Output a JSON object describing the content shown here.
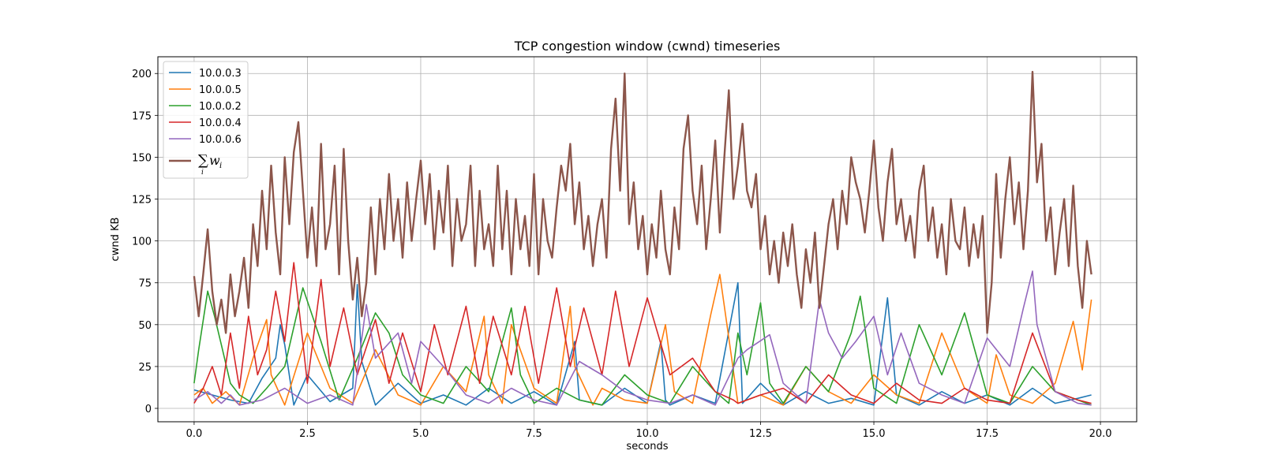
{
  "chart_data": {
    "type": "line",
    "title": "TCP congestion window (cwnd) timeseries",
    "xlabel": "seconds",
    "ylabel": "cwnd KB",
    "xlim": [
      -0.8,
      20.8
    ],
    "ylim": [
      -8,
      210
    ],
    "xticks": [
      "0.0",
      "2.5",
      "5.0",
      "7.5",
      "10.0",
      "12.5",
      "15.0",
      "17.5",
      "20.0"
    ],
    "xtick_values": [
      0,
      2.5,
      5,
      7.5,
      10,
      12.5,
      15,
      17.5,
      20
    ],
    "yticks": [
      "0",
      "25",
      "50",
      "75",
      "100",
      "125",
      "150",
      "175",
      "200"
    ],
    "ytick_values": [
      0,
      25,
      50,
      75,
      100,
      125,
      150,
      175,
      200
    ],
    "grid": true,
    "legend_position": "top-left",
    "series": [
      {
        "name": "10.0.0.3",
        "color": "#1f77b4",
        "x": [
          0.0,
          0.4,
          0.8,
          1.2,
          1.5,
          1.8,
          1.9,
          2.0,
          2.2,
          2.5,
          3.0,
          3.5,
          3.6,
          3.7,
          4.0,
          4.5,
          5.0,
          5.5,
          6.0,
          6.5,
          7.0,
          7.5,
          8.0,
          8.4,
          8.5,
          9.0,
          9.5,
          10.0,
          10.3,
          10.4,
          10.5,
          11.0,
          11.5,
          12.0,
          12.05,
          12.1,
          12.5,
          13.0,
          13.5,
          14.0,
          14.5,
          15.0,
          15.3,
          15.5,
          16.0,
          16.5,
          17.0,
          17.5,
          18.0,
          18.5,
          19.0,
          19.5,
          19.8
        ],
        "y": [
          11,
          8,
          5,
          3,
          18,
          30,
          50,
          38,
          2,
          20,
          4,
          12,
          74,
          28,
          2,
          15,
          3,
          8,
          2,
          12,
          3,
          10,
          2,
          40,
          5,
          2,
          12,
          3,
          40,
          5,
          2,
          8,
          3,
          75,
          40,
          3,
          15,
          2,
          10,
          3,
          6,
          2,
          66,
          8,
          2,
          10,
          3,
          8,
          2,
          12,
          3,
          6,
          8
        ]
      },
      {
        "name": "10.0.0.5",
        "color": "#ff7f0e",
        "x": [
          0.0,
          0.2,
          0.4,
          0.7,
          1.0,
          1.3,
          1.6,
          1.7,
          2.0,
          2.5,
          3.0,
          3.5,
          4.0,
          4.5,
          5.0,
          5.5,
          6.0,
          6.4,
          6.5,
          6.8,
          7.0,
          7.5,
          8.0,
          8.3,
          8.4,
          8.8,
          9.0,
          9.5,
          10.0,
          10.4,
          10.6,
          11.0,
          11.4,
          11.6,
          11.8,
          12.0,
          12.5,
          13.0,
          13.5,
          14.0,
          14.5,
          15.0,
          15.5,
          16.0,
          16.5,
          17.0,
          17.5,
          17.7,
          18.0,
          18.5,
          19.0,
          19.4,
          19.6,
          19.8
        ],
        "y": [
          8,
          12,
          3,
          10,
          2,
          30,
          53,
          20,
          2,
          45,
          12,
          3,
          35,
          8,
          2,
          25,
          10,
          55,
          20,
          3,
          50,
          12,
          3,
          61,
          25,
          2,
          12,
          5,
          3,
          50,
          10,
          3,
          56,
          80,
          42,
          3,
          8,
          2,
          25,
          10,
          3,
          20,
          8,
          3,
          45,
          12,
          3,
          32,
          8,
          3,
          15,
          52,
          23,
          65
        ]
      },
      {
        "name": "10.0.0.2",
        "color": "#2ca02c",
        "x": [
          0.0,
          0.1,
          0.3,
          0.45,
          0.6,
          0.8,
          1.0,
          1.3,
          1.6,
          2.0,
          2.4,
          2.8,
          3.2,
          3.6,
          4.0,
          4.3,
          4.6,
          5.0,
          5.5,
          6.0,
          6.5,
          7.0,
          7.2,
          7.5,
          8.0,
          8.5,
          9.0,
          9.5,
          10.0,
          10.5,
          11.0,
          11.5,
          11.8,
          12.0,
          12.2,
          12.5,
          12.7,
          13.0,
          13.5,
          14.0,
          14.5,
          14.7,
          15.0,
          15.5,
          16.0,
          16.5,
          17.0,
          17.5,
          18.0,
          18.5,
          19.0,
          19.5,
          19.8
        ],
        "y": [
          15,
          35,
          70,
          55,
          38,
          15,
          8,
          3,
          12,
          25,
          72,
          40,
          5,
          30,
          57,
          45,
          20,
          8,
          3,
          25,
          10,
          60,
          20,
          3,
          12,
          5,
          2,
          20,
          8,
          3,
          25,
          10,
          3,
          45,
          20,
          63,
          15,
          3,
          25,
          10,
          45,
          67,
          12,
          3,
          50,
          20,
          57,
          8,
          3,
          25,
          10,
          5,
          2
        ]
      },
      {
        "name": "10.0.0.4",
        "color": "#d62728",
        "x": [
          0.0,
          0.2,
          0.4,
          0.6,
          0.8,
          1.0,
          1.2,
          1.4,
          1.6,
          1.8,
          2.0,
          2.2,
          2.5,
          2.8,
          3.0,
          3.3,
          3.6,
          4.0,
          4.3,
          4.6,
          5.0,
          5.3,
          5.6,
          6.0,
          6.3,
          6.6,
          7.0,
          7.3,
          7.6,
          8.0,
          8.3,
          8.6,
          9.0,
          9.3,
          9.6,
          10.0,
          10.5,
          11.0,
          11.5,
          11.9,
          12.0,
          12.5,
          13.0,
          13.5,
          14.0,
          14.5,
          15.0,
          15.5,
          16.0,
          16.5,
          17.0,
          17.5,
          18.0,
          18.5,
          19.0,
          19.5,
          19.8
        ],
        "y": [
          3,
          12,
          25,
          8,
          45,
          12,
          55,
          20,
          35,
          70,
          40,
          87,
          15,
          77,
          25,
          60,
          20,
          53,
          15,
          45,
          10,
          50,
          20,
          61,
          15,
          55,
          20,
          61,
          15,
          72,
          25,
          60,
          20,
          70,
          25,
          66,
          20,
          30,
          10,
          5,
          3,
          8,
          12,
          3,
          20,
          8,
          3,
          15,
          5,
          3,
          12,
          5,
          3,
          45,
          10,
          5,
          3
        ]
      },
      {
        "name": "10.0.0.6",
        "color": "#9467bd",
        "x": [
          0.0,
          0.3,
          0.6,
          0.8,
          1.0,
          1.5,
          2.0,
          2.5,
          3.0,
          3.5,
          3.8,
          4.0,
          4.5,
          4.8,
          5.0,
          5.5,
          6.0,
          6.5,
          7.0,
          7.5,
          8.0,
          8.5,
          9.0,
          9.5,
          10.0,
          10.5,
          11.0,
          11.5,
          12.0,
          12.2,
          12.7,
          13.0,
          13.5,
          13.8,
          14.0,
          14.3,
          14.6,
          15.0,
          15.3,
          15.6,
          16.0,
          16.5,
          17.0,
          17.5,
          18.0,
          18.3,
          18.5,
          18.6,
          18.8,
          19.0,
          19.5,
          19.8
        ],
        "y": [
          5,
          10,
          3,
          8,
          2,
          5,
          12,
          3,
          8,
          2,
          62,
          30,
          45,
          15,
          40,
          25,
          8,
          3,
          12,
          5,
          2,
          28,
          20,
          10,
          5,
          3,
          8,
          2,
          30,
          35,
          44,
          15,
          3,
          65,
          45,
          30,
          40,
          55,
          20,
          45,
          15,
          8,
          3,
          42,
          25,
          60,
          82,
          50,
          30,
          10,
          3,
          2
        ]
      },
      {
        "name": "∑_i w_i",
        "color": "#8c564b",
        "x": [
          0.0,
          0.1,
          0.2,
          0.3,
          0.4,
          0.5,
          0.6,
          0.7,
          0.8,
          0.9,
          1.0,
          1.1,
          1.2,
          1.3,
          1.4,
          1.5,
          1.6,
          1.7,
          1.8,
          1.9,
          2.0,
          2.1,
          2.2,
          2.3,
          2.4,
          2.5,
          2.6,
          2.7,
          2.8,
          2.9,
          3.0,
          3.1,
          3.2,
          3.3,
          3.4,
          3.5,
          3.6,
          3.7,
          3.8,
          3.9,
          4.0,
          4.1,
          4.2,
          4.3,
          4.4,
          4.5,
          4.6,
          4.7,
          4.8,
          4.9,
          5.0,
          5.1,
          5.2,
          5.3,
          5.4,
          5.5,
          5.6,
          5.7,
          5.8,
          5.9,
          6.0,
          6.1,
          6.2,
          6.3,
          6.4,
          6.5,
          6.6,
          6.7,
          6.8,
          6.9,
          7.0,
          7.1,
          7.2,
          7.3,
          7.4,
          7.5,
          7.6,
          7.7,
          7.8,
          7.9,
          8.0,
          8.1,
          8.2,
          8.3,
          8.4,
          8.5,
          8.6,
          8.7,
          8.8,
          8.9,
          9.0,
          9.1,
          9.2,
          9.3,
          9.4,
          9.5,
          9.6,
          9.7,
          9.8,
          9.9,
          10.0,
          10.1,
          10.2,
          10.3,
          10.4,
          10.5,
          10.6,
          10.7,
          10.8,
          10.9,
          11.0,
          11.1,
          11.2,
          11.3,
          11.4,
          11.5,
          11.6,
          11.7,
          11.8,
          11.9,
          12.0,
          12.1,
          12.2,
          12.3,
          12.4,
          12.5,
          12.6,
          12.7,
          12.8,
          12.9,
          13.0,
          13.1,
          13.2,
          13.3,
          13.4,
          13.5,
          13.6,
          13.7,
          13.8,
          13.9,
          14.0,
          14.1,
          14.2,
          14.3,
          14.4,
          14.5,
          14.6,
          14.7,
          14.8,
          14.9,
          15.0,
          15.1,
          15.2,
          15.3,
          15.4,
          15.5,
          15.6,
          15.7,
          15.8,
          15.9,
          16.0,
          16.1,
          16.2,
          16.3,
          16.4,
          16.5,
          16.6,
          16.7,
          16.8,
          16.9,
          17.0,
          17.1,
          17.2,
          17.3,
          17.4,
          17.5,
          17.6,
          17.7,
          17.8,
          17.9,
          18.0,
          18.1,
          18.2,
          18.3,
          18.4,
          18.5,
          18.6,
          18.7,
          18.8,
          18.9,
          19.0,
          19.1,
          19.2,
          19.3,
          19.4,
          19.5,
          19.6,
          19.7,
          19.8
        ],
        "y": [
          79,
          55,
          80,
          107,
          70,
          50,
          65,
          45,
          80,
          55,
          70,
          90,
          60,
          110,
          85,
          130,
          95,
          145,
          105,
          80,
          150,
          110,
          153,
          171,
          130,
          90,
          120,
          85,
          158,
          95,
          110,
          145,
          80,
          155,
          100,
          65,
          90,
          55,
          75,
          120,
          80,
          125,
          95,
          140,
          100,
          125,
          90,
          135,
          100,
          125,
          148,
          110,
          140,
          95,
          130,
          105,
          145,
          85,
          125,
          100,
          110,
          145,
          85,
          130,
          95,
          110,
          85,
          145,
          95,
          130,
          80,
          125,
          95,
          115,
          85,
          140,
          80,
          125,
          100,
          90,
          120,
          145,
          130,
          158,
          110,
          135,
          95,
          115,
          85,
          110,
          125,
          90,
          155,
          185,
          130,
          200,
          110,
          135,
          95,
          115,
          80,
          110,
          90,
          130,
          95,
          80,
          120,
          95,
          155,
          175,
          130,
          110,
          145,
          95,
          125,
          160,
          105,
          150,
          190,
          125,
          145,
          170,
          130,
          120,
          140,
          95,
          115,
          80,
          100,
          75,
          105,
          85,
          110,
          80,
          60,
          95,
          75,
          105,
          60,
          85,
          110,
          125,
          95,
          130,
          110,
          150,
          135,
          125,
          105,
          130,
          160,
          120,
          100,
          135,
          155,
          110,
          125,
          100,
          115,
          90,
          130,
          145,
          100,
          120,
          90,
          110,
          80,
          125,
          100,
          95,
          120,
          85,
          110,
          90,
          115,
          45,
          75,
          140,
          90,
          125,
          150,
          110,
          135,
          95,
          130,
          201,
          135,
          158,
          100,
          120,
          80,
          105,
          125,
          85,
          133,
          85,
          60,
          100,
          80
        ]
      }
    ]
  }
}
